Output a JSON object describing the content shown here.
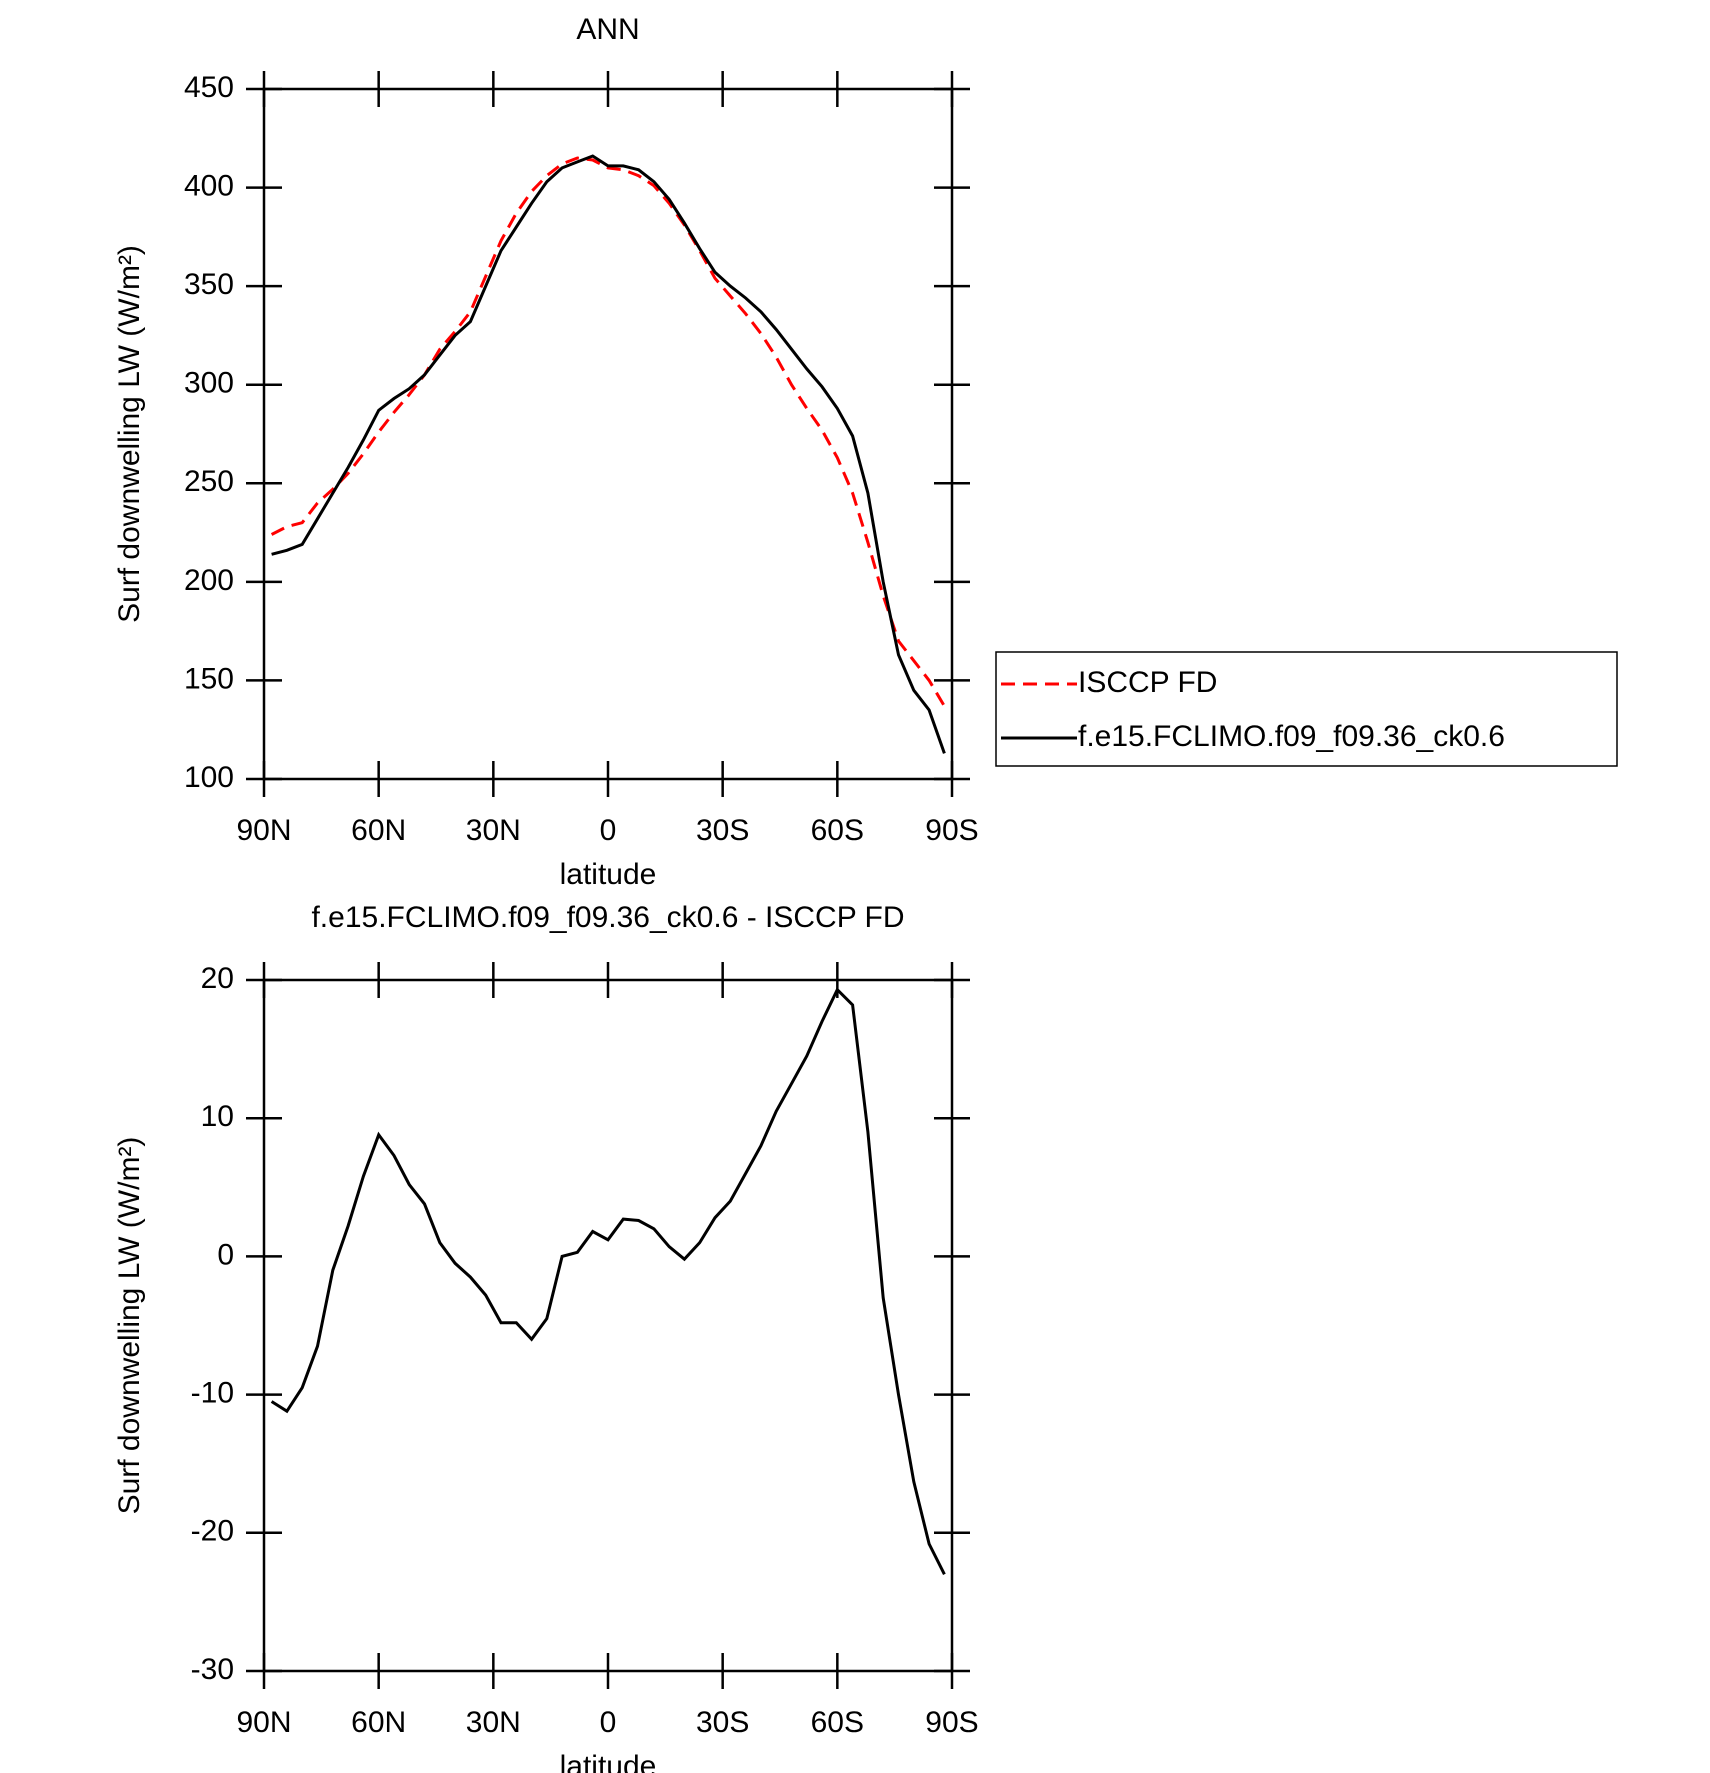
{
  "chart_data": [
    {
      "type": "line",
      "title": "ANN",
      "xlabel": "latitude",
      "ylabel": "Surf downwelling LW (W/m²)",
      "x": [
        88,
        84,
        80,
        76,
        72,
        68,
        64,
        60,
        56,
        52,
        48,
        44,
        40,
        36,
        32,
        28,
        24,
        20,
        16,
        12,
        8,
        4,
        0,
        -4,
        -8,
        -12,
        -16,
        -20,
        -24,
        -28,
        -32,
        -36,
        -40,
        -44,
        -48,
        -52,
        -56,
        -60,
        -64,
        -68,
        -72,
        -76,
        -80,
        -84,
        -88
      ],
      "series": [
        {
          "name": "ISCCP FD",
          "color": "#ff0000",
          "linestyle": "dashed",
          "values": [
            224,
            228,
            230,
            240,
            247,
            255,
            265,
            276,
            286,
            295,
            305,
            318,
            327,
            337,
            355,
            373,
            387,
            398,
            406,
            412,
            415,
            414,
            410,
            409,
            406,
            401,
            392,
            381,
            368,
            354,
            345,
            336,
            326,
            314,
            300,
            288,
            277,
            263,
            245,
            220,
            193,
            170,
            160,
            150,
            137
          ]
        },
        {
          "name": "f.e15.FCLIMO.f09_f09.36_ck0.6",
          "color": "#000000",
          "linestyle": "solid",
          "values": [
            214,
            216,
            219,
            232,
            245,
            258,
            272,
            287,
            293,
            298,
            305,
            315,
            325,
            332,
            350,
            368,
            380,
            392,
            403,
            410,
            413,
            416,
            411,
            411,
            409,
            403,
            394,
            382,
            369,
            357,
            350,
            344,
            337,
            328,
            318,
            308,
            299,
            288,
            274,
            245,
            200,
            163,
            145,
            135,
            113
          ]
        }
      ],
      "xlim": [
        90,
        -90
      ],
      "ylim": [
        100,
        450
      ],
      "xticks": [
        {
          "value": 90,
          "label": "90N"
        },
        {
          "value": 60,
          "label": "60N"
        },
        {
          "value": 30,
          "label": "30N"
        },
        0,
        {
          "value": -30,
          "label": "30S"
        },
        {
          "value": -60,
          "label": "60S"
        },
        {
          "value": -90,
          "label": "90S"
        }
      ],
      "yticks": [
        100,
        150,
        200,
        250,
        300,
        350,
        400,
        450
      ],
      "legend": "right"
    },
    {
      "type": "line",
      "title": "f.e15.FCLIMO.f09_f09.36_ck0.6 - ISCCP FD",
      "xlabel": "latitude",
      "ylabel": "Surf downwelling LW (W/m²)",
      "x": [
        88,
        84,
        80,
        76,
        72,
        68,
        64,
        60,
        56,
        52,
        48,
        44,
        40,
        36,
        32,
        28,
        24,
        20,
        16,
        12,
        8,
        4,
        0,
        -4,
        -8,
        -12,
        -16,
        -20,
        -24,
        -28,
        -32,
        -36,
        -40,
        -44,
        -48,
        -52,
        -56,
        -60,
        -64,
        -68,
        -72,
        -76,
        -80,
        -84,
        -88
      ],
      "series": [
        {
          "color": "#000000",
          "linestyle": "solid",
          "values": [
            -10.5,
            -11.2,
            -9.5,
            -6.5,
            -1,
            2.2,
            5.8,
            8.8,
            7.3,
            5.2,
            3.8,
            1,
            -0.5,
            -1.5,
            -2.8,
            -4.8,
            -4.8,
            -6,
            -4.5,
            0,
            0.3,
            1.8,
            1.2,
            2.7,
            2.6,
            2,
            0.7,
            -0.2,
            1,
            2.8,
            4,
            6,
            8,
            10.5,
            12.5,
            14.5,
            17,
            19.3,
            18.2,
            9,
            -3,
            -10,
            -16.3,
            -20.8,
            -23
          ]
        }
      ],
      "xlim": [
        90,
        -90
      ],
      "ylim": [
        -30,
        20
      ],
      "xticks": [
        {
          "value": 90,
          "label": "90N"
        },
        {
          "value": 60,
          "label": "60N"
        },
        {
          "value": 30,
          "label": "30N"
        },
        0,
        {
          "value": -30,
          "label": "30S"
        },
        {
          "value": -60,
          "label": "60S"
        },
        {
          "value": -90,
          "label": "90S"
        }
      ],
      "yticks": [
        -30,
        -20,
        -10,
        0,
        10,
        20
      ]
    }
  ]
}
